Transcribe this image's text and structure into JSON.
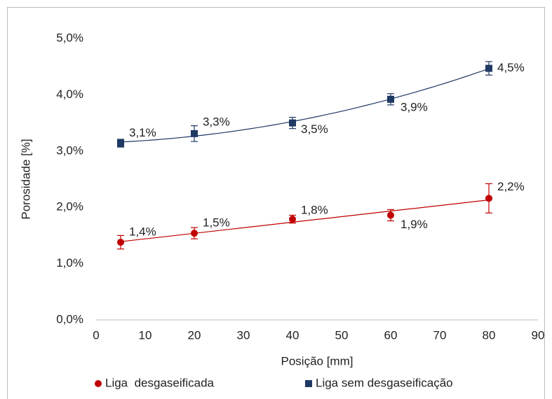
{
  "chart_data": {
    "type": "scatter",
    "xlabel": "Posição [mm]",
    "ylabel": "Porosidade [%]",
    "xlim": [
      0,
      90
    ],
    "xticks": [
      0,
      10,
      20,
      30,
      40,
      50,
      60,
      70,
      80,
      90
    ],
    "ylim": [
      0,
      5
    ],
    "yticks": [
      {
        "value": 0,
        "label": "0,0%"
      },
      {
        "value": 1,
        "label": "1,0%"
      },
      {
        "value": 2,
        "label": "2,0%"
      },
      {
        "value": 3,
        "label": "3,0%"
      },
      {
        "value": 4,
        "label": "4,0%"
      },
      {
        "value": 5,
        "label": "5,0%"
      }
    ],
    "grid": false,
    "legend": "bottom",
    "series": [
      {
        "name": "Liga  desgaseificada",
        "color": "#c00000",
        "marker": "circle",
        "trendline": "linear",
        "x": [
          5,
          20,
          40,
          60,
          80
        ],
        "values": [
          1.38,
          1.54,
          1.79,
          1.86,
          2.16
        ],
        "errors": [
          0.12,
          0.1,
          0.07,
          0.1,
          0.26
        ],
        "value_labels": [
          "1,4%",
          "1,5%",
          "1,8%",
          "1,9%",
          "2,2%"
        ]
      },
      {
        "name": "Liga sem desgaseificação",
        "color": "#1f3864",
        "marker": "square",
        "trendline": "polynomial",
        "x": [
          5,
          20,
          40,
          60,
          80
        ],
        "values": [
          3.14,
          3.31,
          3.5,
          3.92,
          4.47
        ],
        "errors": [
          0.07,
          0.14,
          0.1,
          0.1,
          0.12
        ],
        "value_labels": [
          "3,1%",
          "3,3%",
          "3,5%",
          "3,9%",
          "4,5%"
        ]
      }
    ]
  }
}
